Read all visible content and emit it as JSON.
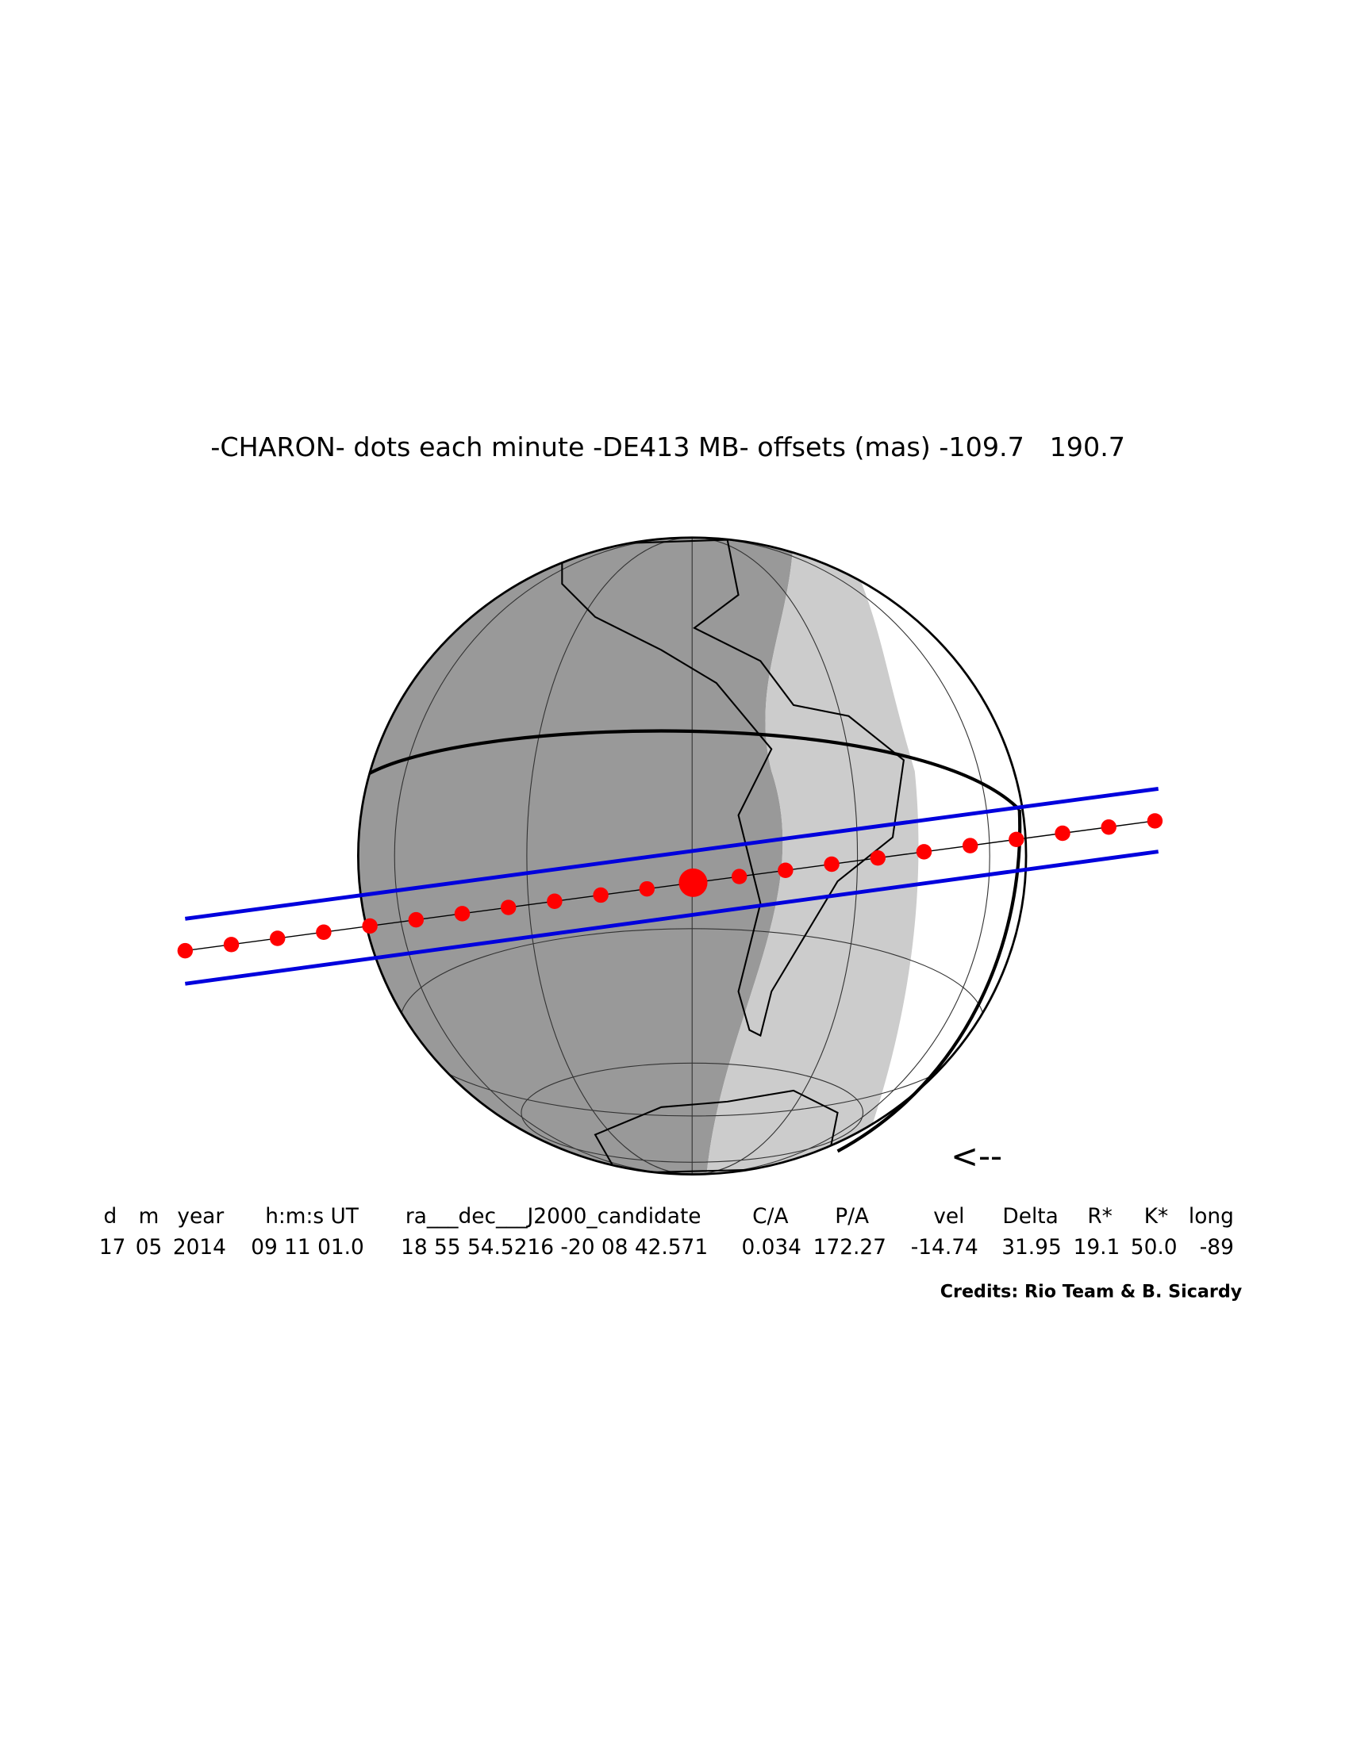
{
  "title": "-CHARON- dots each minute -DE413 MB- offsets (mas) -109.7   190.7",
  "direction": "<--",
  "table": {
    "headers": [
      "d",
      "m",
      "year",
      "h:m:s UT",
      "ra___dec___J2000_candidate",
      "C/A",
      "P/A",
      "vel",
      "Delta",
      "R*",
      "K*",
      "long"
    ],
    "values": [
      "17",
      "05",
      "2014",
      "09 11 01.0",
      "18 55 54.5216 -20 08 42.571",
      "0.034",
      "172.27",
      "-14.74",
      "31.95",
      "19.1",
      "50.0",
      "-89"
    ]
  },
  "credits": "Credits: Rio Team & B. Sicardy"
}
